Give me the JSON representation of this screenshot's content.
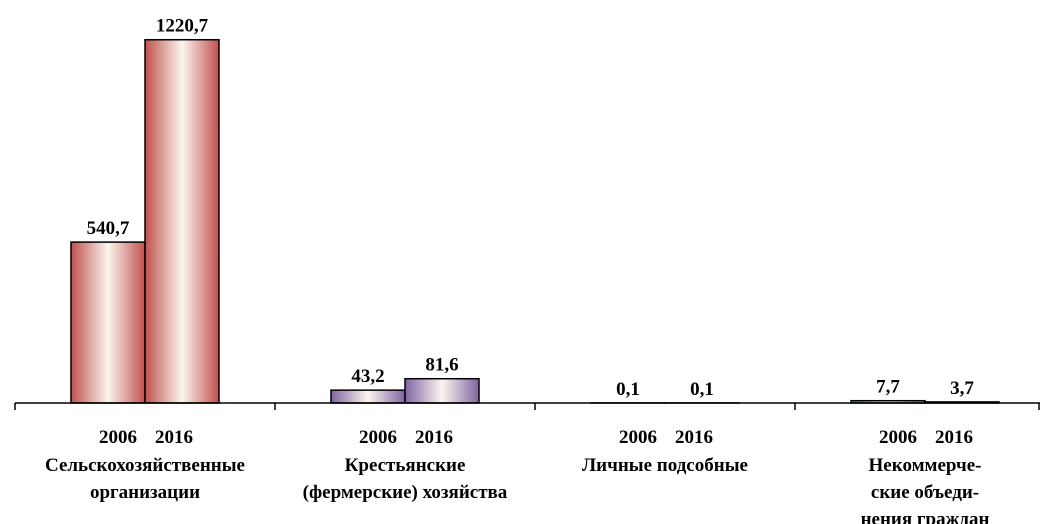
{
  "chart_data": {
    "type": "bar",
    "categories": [
      [
        "Сельскохозяйственные",
        "организации"
      ],
      [
        "Крестьянские",
        "(фермерские) хозяйства"
      ],
      [
        "Личные подсобные"
      ],
      [
        "Некоммерче-",
        "ские объеди-",
        "нения граждан"
      ]
    ],
    "category_colors": [
      "#c0504d",
      "#8064a2",
      "#9bbb59",
      "#4bacc6"
    ],
    "series": [
      {
        "name": "2006",
        "values": [
          540.7,
          43.2,
          0.1,
          7.7
        ],
        "value_labels": [
          "540,7",
          "43,2",
          "0,1",
          "7,7"
        ]
      },
      {
        "name": "2016",
        "values": [
          1220.7,
          81.6,
          0.1,
          3.7
        ],
        "value_labels": [
          "1220,7",
          "81,6",
          "0,1",
          "3,7"
        ]
      }
    ],
    "ylim": [
      0,
      1250
    ]
  }
}
